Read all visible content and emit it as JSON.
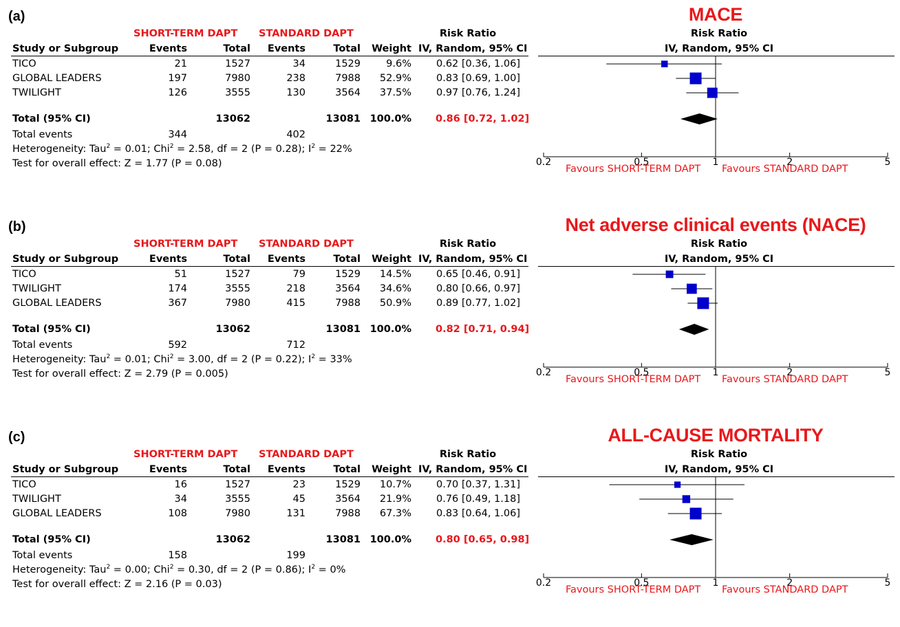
{
  "headers": {
    "group1": "SHORT-TERM DAPT",
    "group2": "STANDARD DAPT",
    "study": "Study or Subgroup",
    "events": "Events",
    "total": "Total",
    "weight": "Weight",
    "rr_title": "Risk Ratio",
    "rr_method": "IV, Random, 95% CI",
    "total_row": "Total (95% CI)",
    "total_events": "Total events",
    "favours_left": "Favours SHORT-TERM DAPT",
    "favours_right": "Favours STANDARD DAPT"
  },
  "axis_ticks": [
    "0.2",
    "0.5",
    "1",
    "2",
    "5"
  ],
  "panels": [
    {
      "label": "(a)",
      "title": "MACE",
      "rows": [
        {
          "study": "TICO",
          "e1": "21",
          "n1": "1527",
          "e2": "34",
          "n2": "1529",
          "weight": "9.6%",
          "ci": "0.62 [0.36, 1.06]"
        },
        {
          "study": "GLOBAL LEADERS",
          "e1": "197",
          "n1": "7980",
          "e2": "238",
          "n2": "7988",
          "weight": "52.9%",
          "ci": "0.83 [0.69, 1.00]"
        },
        {
          "study": "TWILIGHT",
          "e1": "126",
          "n1": "3555",
          "e2": "130",
          "n2": "3564",
          "weight": "37.5%",
          "ci": "0.97 [0.76, 1.24]"
        }
      ],
      "total": {
        "n1": "13062",
        "n2": "13081",
        "weight": "100.0%",
        "ci": "0.86 [0.72, 1.02]"
      },
      "events": {
        "e1": "344",
        "e2": "402"
      },
      "heterogeneity": {
        "prefix": "Heterogeneity: Tau",
        "tau2": "0.01",
        "chi2": "2.58",
        "rest": "df = 2 (P = 0.28); I",
        "i2": "22%"
      },
      "overall": "Test for overall effect: Z = 1.77 (P = 0.08)"
    },
    {
      "label": "(b)",
      "title": "Net adverse clinical events (NACE)",
      "rows": [
        {
          "study": "TICO",
          "e1": "51",
          "n1": "1527",
          "e2": "79",
          "n2": "1529",
          "weight": "14.5%",
          "ci": "0.65 [0.46, 0.91]"
        },
        {
          "study": "TWILIGHT",
          "e1": "174",
          "n1": "3555",
          "e2": "218",
          "n2": "3564",
          "weight": "34.6%",
          "ci": "0.80 [0.66, 0.97]"
        },
        {
          "study": "GLOBAL LEADERS",
          "e1": "367",
          "n1": "7980",
          "e2": "415",
          "n2": "7988",
          "weight": "50.9%",
          "ci": "0.89 [0.77, 1.02]"
        }
      ],
      "total": {
        "n1": "13062",
        "n2": "13081",
        "weight": "100.0%",
        "ci": "0.82 [0.71, 0.94]"
      },
      "events": {
        "e1": "592",
        "e2": "712"
      },
      "heterogeneity": {
        "prefix": "Heterogeneity: Tau",
        "tau2": "0.01",
        "chi2": "3.00",
        "rest": "df = 2 (P = 0.22); I",
        "i2": "33%"
      },
      "overall": "Test for overall effect: Z = 2.79 (P = 0.005)"
    },
    {
      "label": "(c)",
      "title": "ALL-CAUSE MORTALITY",
      "rows": [
        {
          "study": "TICO",
          "e1": "16",
          "n1": "1527",
          "e2": "23",
          "n2": "1529",
          "weight": "10.7%",
          "ci": "0.70 [0.37, 1.31]"
        },
        {
          "study": "TWILIGHT",
          "e1": "34",
          "n1": "3555",
          "e2": "45",
          "n2": "3564",
          "weight": "21.9%",
          "ci": "0.76 [0.49, 1.18]"
        },
        {
          "study": "GLOBAL LEADERS",
          "e1": "108",
          "n1": "7980",
          "e2": "131",
          "n2": "7988",
          "weight": "67.3%",
          "ci": "0.83 [0.64, 1.06]"
        }
      ],
      "total": {
        "n1": "13062",
        "n2": "13081",
        "weight": "100.0%",
        "ci": "0.80 [0.65, 0.98]"
      },
      "events": {
        "e1": "158",
        "e2": "199"
      },
      "heterogeneity": {
        "prefix": "Heterogeneity: Tau",
        "tau2": "0.00",
        "chi2": "0.30",
        "rest": "df = 2 (P = 0.86); I",
        "i2": "0%"
      },
      "overall": "Test for overall effect: Z = 2.16 (P = 0.03)"
    }
  ],
  "chart_data": [
    {
      "type": "forest",
      "title": "MACE",
      "x_scale": "log",
      "xlim": [
        0.2,
        5
      ],
      "xticks": [
        0.2,
        0.5,
        1,
        2,
        5
      ],
      "reference_line": 1,
      "studies": [
        {
          "name": "TICO",
          "rr": 0.62,
          "lo": 0.36,
          "hi": 1.06,
          "weight": 9.6
        },
        {
          "name": "GLOBAL LEADERS",
          "rr": 0.83,
          "lo": 0.69,
          "hi": 1.0,
          "weight": 52.9
        },
        {
          "name": "TWILIGHT",
          "rr": 0.97,
          "lo": 0.76,
          "hi": 1.24,
          "weight": 37.5
        }
      ],
      "pooled": {
        "rr": 0.86,
        "lo": 0.72,
        "hi": 1.02
      },
      "color": "#0000cc"
    },
    {
      "type": "forest",
      "title": "Net adverse clinical events (NACE)",
      "x_scale": "log",
      "xlim": [
        0.2,
        5
      ],
      "xticks": [
        0.2,
        0.5,
        1,
        2,
        5
      ],
      "reference_line": 1,
      "studies": [
        {
          "name": "TICO",
          "rr": 0.65,
          "lo": 0.46,
          "hi": 0.91,
          "weight": 14.5
        },
        {
          "name": "TWILIGHT",
          "rr": 0.8,
          "lo": 0.66,
          "hi": 0.97,
          "weight": 34.6
        },
        {
          "name": "GLOBAL LEADERS",
          "rr": 0.89,
          "lo": 0.77,
          "hi": 1.02,
          "weight": 50.9
        }
      ],
      "pooled": {
        "rr": 0.82,
        "lo": 0.71,
        "hi": 0.94
      },
      "color": "#0000cc"
    },
    {
      "type": "forest",
      "title": "ALL-CAUSE MORTALITY",
      "x_scale": "log",
      "xlim": [
        0.2,
        5
      ],
      "xticks": [
        0.2,
        0.5,
        1,
        2,
        5
      ],
      "reference_line": 1,
      "studies": [
        {
          "name": "TICO",
          "rr": 0.7,
          "lo": 0.37,
          "hi": 1.31,
          "weight": 10.7
        },
        {
          "name": "TWILIGHT",
          "rr": 0.76,
          "lo": 0.49,
          "hi": 1.18,
          "weight": 21.9
        },
        {
          "name": "GLOBAL LEADERS",
          "rr": 0.83,
          "lo": 0.64,
          "hi": 1.06,
          "weight": 67.3
        }
      ],
      "pooled": {
        "rr": 0.8,
        "lo": 0.65,
        "hi": 0.98
      },
      "color": "#0000cc"
    }
  ]
}
